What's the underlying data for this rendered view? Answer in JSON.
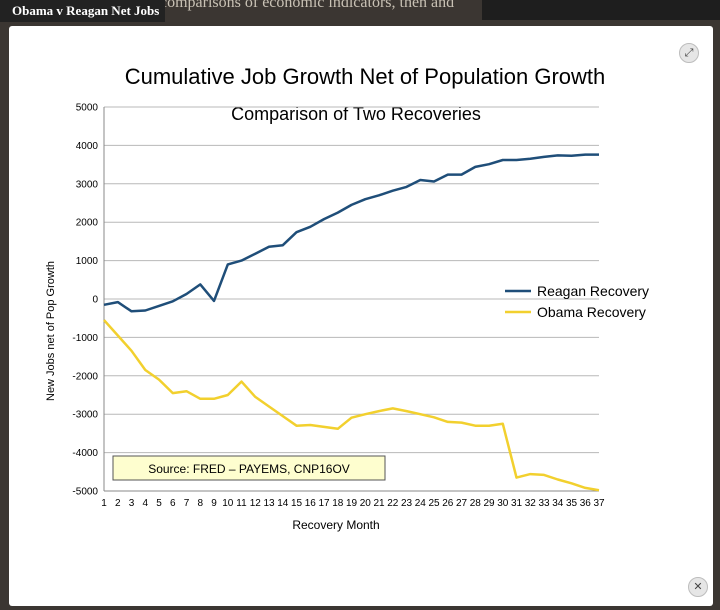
{
  "page": {
    "title": "Obama v Reagan Net Jobs",
    "background_text": "comparisons of economic indicators, then and"
  },
  "icons": {
    "expand": "expand-icon",
    "close": "close-icon"
  },
  "icon_glyphs": {
    "expand": "⤢",
    "close": "✕"
  },
  "chart_data": {
    "type": "line",
    "title": "Cumulative Job Growth Net of Population Growth",
    "subtitle": "Comparison of Two Recoveries",
    "xlabel": "Recovery Month",
    "ylabel": "New Jobs net of Pop Growth",
    "ylim": [
      -5000,
      5000
    ],
    "yticks": [
      -5000,
      -4000,
      -3000,
      -2000,
      -1000,
      0,
      1000,
      2000,
      3000,
      4000,
      5000
    ],
    "x": [
      1,
      2,
      3,
      4,
      5,
      6,
      7,
      8,
      9,
      10,
      11,
      12,
      13,
      14,
      15,
      16,
      17,
      18,
      19,
      20,
      21,
      22,
      23,
      24,
      25,
      26,
      27,
      28,
      29,
      30,
      31,
      32,
      33,
      34,
      35,
      36,
      37
    ],
    "grid": true,
    "legend_position": "right",
    "annotation": "Source: FRED – PAYEMS, CNP16OV",
    "series": [
      {
        "name": "Reagan Recovery",
        "color": "#1f4e79",
        "values": [
          -150,
          -80,
          -320,
          -300,
          -180,
          -60,
          130,
          380,
          -50,
          900,
          1000,
          1180,
          1360,
          1400,
          1740,
          1880,
          2080,
          2250,
          2450,
          2600,
          2700,
          2820,
          2920,
          3100,
          3060,
          3240,
          3240,
          3440,
          3510,
          3620,
          3620,
          3650,
          3700,
          3740,
          3730,
          3760,
          3760
        ]
      },
      {
        "name": "Obama Recovery",
        "color": "#f2d02e",
        "values": [
          -550,
          -950,
          -1350,
          -1850,
          -2100,
          -2450,
          -2400,
          -2600,
          -2600,
          -2500,
          -2150,
          -2550,
          -2800,
          -3050,
          -3300,
          -3280,
          -3330,
          -3380,
          -3090,
          -3000,
          -2920,
          -2850,
          -2920,
          -3000,
          -3080,
          -3200,
          -3220,
          -3300,
          -3300,
          -3250,
          -4650,
          -4560,
          -4580,
          -4700,
          -4800,
          -4920,
          -4980
        ]
      }
    ]
  }
}
